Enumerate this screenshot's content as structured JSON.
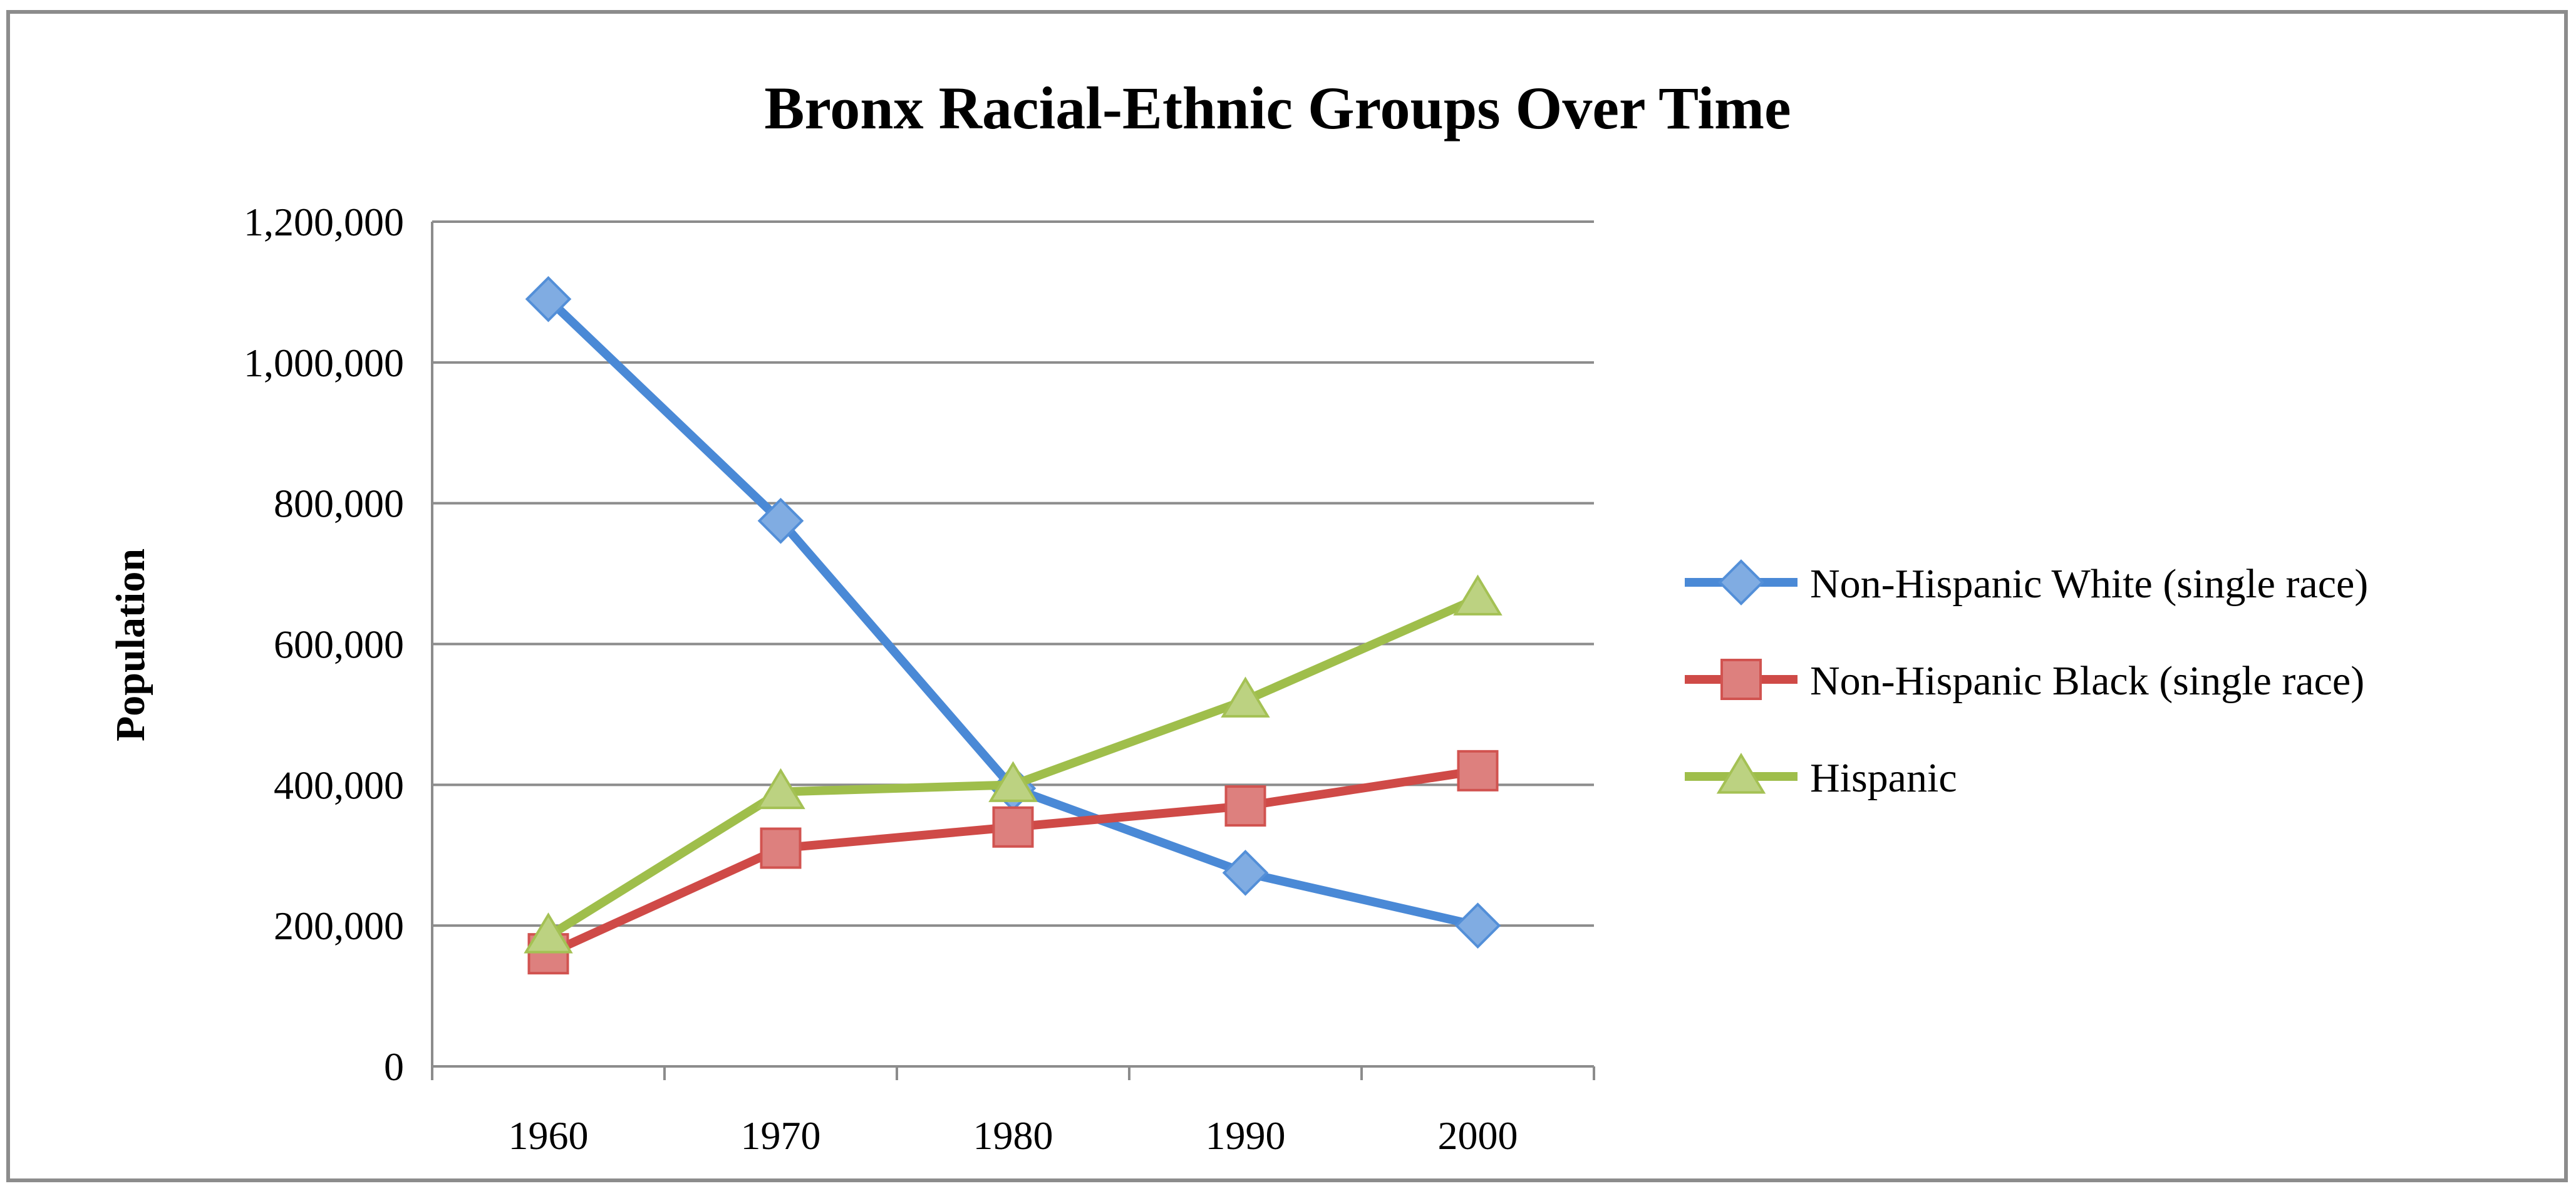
{
  "chart_data": {
    "type": "line",
    "title": "Bronx Racial-Ethnic Groups Over Time",
    "xlabel": "",
    "ylabel": "Population",
    "categories": [
      "1960",
      "1970",
      "1980",
      "1990",
      "2000"
    ],
    "ylim": [
      0,
      1200000
    ],
    "yticks": [
      0,
      200000,
      400000,
      600000,
      800000,
      1000000,
      1200000
    ],
    "ytick_labels": [
      "0",
      "200,000",
      "400,000",
      "600,000",
      "800,000",
      "1,000,000",
      "1,200,000"
    ],
    "grid": true,
    "legend_position": "right",
    "series": [
      {
        "name": "Non-Hispanic White (single race)",
        "values": [
          1090000,
          775000,
          395000,
          275000,
          200000
        ],
        "color": "#4a89d6",
        "marker": "diamond"
      },
      {
        "name": "Non-Hispanic Black (single race)",
        "values": [
          160000,
          310000,
          340000,
          370000,
          420000
        ],
        "color": "#cf4a47",
        "marker": "square"
      },
      {
        "name": "Hispanic",
        "values": [
          185000,
          390000,
          400000,
          520000,
          665000
        ],
        "color": "#9fbe4b",
        "marker": "triangle"
      }
    ]
  }
}
